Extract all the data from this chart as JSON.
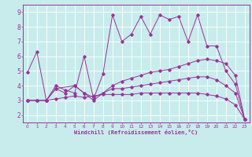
{
  "xlabel": "Windchill (Refroidissement éolien,°C)",
  "bg_color": "#c8ecec",
  "grid_color": "#ffffff",
  "line_color": "#993399",
  "xlim": [
    -0.5,
    23.5
  ],
  "ylim": [
    1.5,
    9.5
  ],
  "yticks": [
    2,
    3,
    4,
    5,
    6,
    7,
    8,
    9
  ],
  "xticks": [
    0,
    1,
    2,
    3,
    4,
    5,
    6,
    7,
    8,
    9,
    10,
    11,
    12,
    13,
    14,
    15,
    16,
    17,
    18,
    19,
    20,
    21,
    22,
    23
  ],
  "line1_x": [
    0,
    1,
    2,
    3,
    4,
    5,
    6,
    7,
    8,
    9,
    10,
    11,
    12,
    13,
    14,
    15,
    16,
    17,
    18,
    19,
    20,
    21,
    22,
    23
  ],
  "line1_y": [
    4.9,
    6.3,
    3.0,
    4.0,
    3.7,
    3.5,
    6.0,
    3.1,
    4.8,
    8.8,
    7.0,
    7.5,
    8.7,
    7.5,
    8.8,
    8.5,
    8.7,
    7.0,
    8.8,
    6.7,
    6.7,
    5.0,
    4.1,
    1.7
  ],
  "line2_x": [
    0,
    1,
    2,
    3,
    5,
    6,
    7,
    8,
    9,
    10,
    11,
    12,
    13,
    14,
    15,
    16,
    17,
    18,
    19,
    20,
    21,
    22,
    23
  ],
  "line2_y": [
    3.0,
    3.0,
    3.0,
    3.8,
    4.0,
    3.5,
    3.2,
    3.5,
    4.0,
    4.3,
    4.5,
    4.7,
    4.9,
    5.0,
    5.1,
    5.3,
    5.5,
    5.7,
    5.8,
    5.7,
    5.5,
    4.7,
    1.7
  ],
  "line3_x": [
    0,
    1,
    2,
    3,
    4,
    5,
    6,
    7,
    8,
    9,
    10,
    11,
    12,
    13,
    14,
    15,
    16,
    17,
    18,
    19,
    20,
    21,
    22,
    23
  ],
  "line3_y": [
    3.0,
    3.0,
    3.0,
    3.8,
    3.5,
    4.0,
    3.5,
    3.0,
    3.5,
    3.8,
    3.8,
    3.9,
    4.0,
    4.1,
    4.2,
    4.3,
    4.4,
    4.5,
    4.6,
    4.6,
    4.4,
    4.0,
    3.5,
    1.7
  ],
  "line4_x": [
    0,
    1,
    2,
    3,
    4,
    5,
    6,
    7,
    8,
    9,
    10,
    11,
    12,
    13,
    14,
    15,
    16,
    17,
    18,
    19,
    20,
    21,
    22,
    23
  ],
  "line4_y": [
    3.0,
    3.0,
    3.0,
    3.1,
    3.2,
    3.3,
    3.2,
    3.3,
    3.4,
    3.4,
    3.4,
    3.4,
    3.5,
    3.5,
    3.5,
    3.5,
    3.5,
    3.5,
    3.5,
    3.4,
    3.3,
    3.1,
    2.7,
    1.7
  ]
}
